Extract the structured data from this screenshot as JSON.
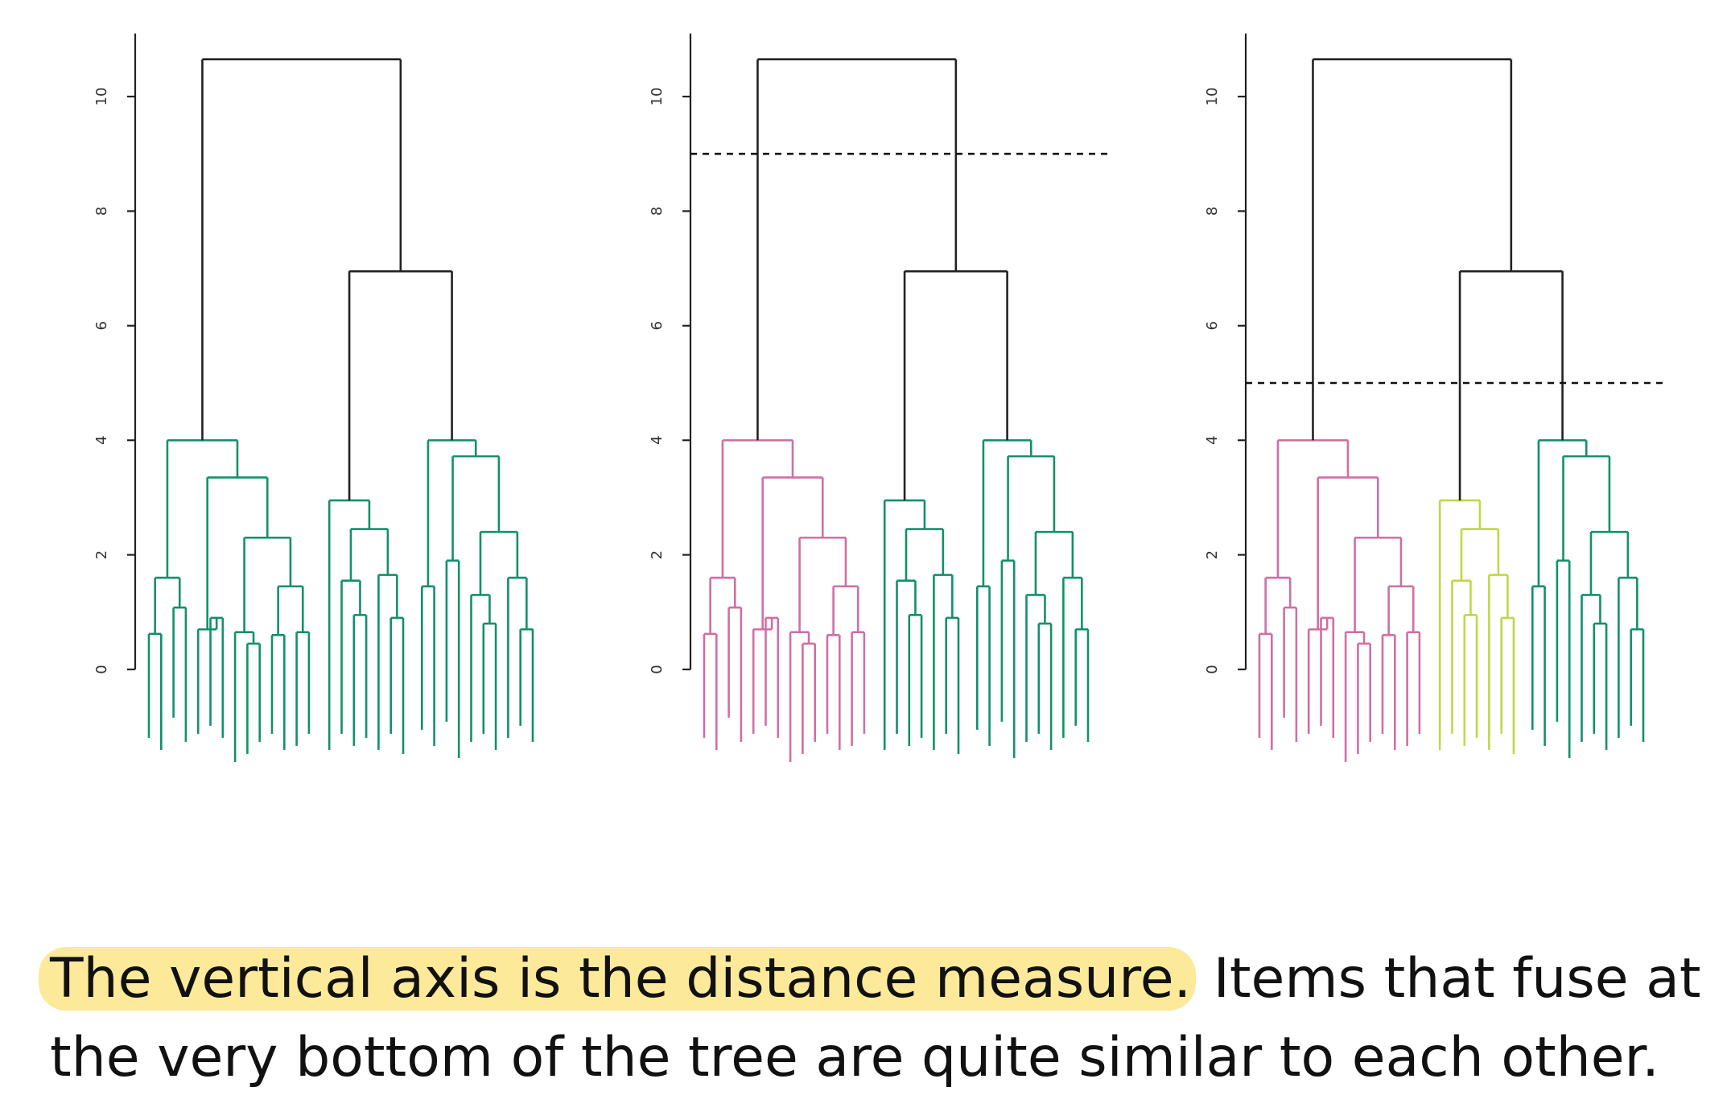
{
  "panels": [
    {
      "name": "dendrogram-uncut",
      "cut_height": null,
      "clusters": {
        "A": "#11906c",
        "B": "#11906c",
        "C": "#11906c"
      }
    },
    {
      "name": "dendrogram-cut-2",
      "cut_height": 9,
      "clusters": {
        "A": "#cf6fa3",
        "B": "#11906c",
        "C": "#11906c"
      }
    },
    {
      "name": "dendrogram-cut-3",
      "cut_height": 5,
      "clusters": {
        "A": "#cf6fa3",
        "B": "#c2d645",
        "C": "#11906c"
      }
    }
  ],
  "y_axis": {
    "ticks": [
      "0",
      "2",
      "4",
      "6",
      "8",
      "10"
    ],
    "range": [
      0,
      11
    ]
  },
  "tree_color": "#222222",
  "caption": {
    "highlighted": "The vertical axis is the distance measure.",
    "rest_line1": " Items that fuse at",
    "line2": "the very bottom of the tree are quite similar to each other."
  },
  "highlight_color": "#fde99a"
}
